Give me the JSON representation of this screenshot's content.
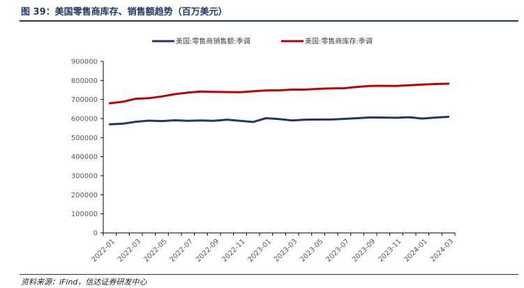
{
  "header": {
    "title": "图 39：美国零售商库存、销售额趋势（百万美元）"
  },
  "footer": {
    "source": "资料来源：iFind，信达证券研发中心"
  },
  "colors": {
    "sales": "#1f3864",
    "inventory": "#c00000",
    "axis": "#000000"
  },
  "chart_data": {
    "type": "line",
    "title": "",
    "xlabel": "",
    "ylabel": "",
    "ylim": [
      0,
      900000
    ],
    "yticks": [
      "0",
      "100000",
      "200000",
      "300000",
      "400000",
      "500000",
      "600000",
      "700000",
      "800000",
      "900000"
    ],
    "x": [
      "2022-01",
      "2022-02",
      "2022-03",
      "2022-04",
      "2022-05",
      "2022-06",
      "2022-07",
      "2022-08",
      "2022-09",
      "2022-10",
      "2022-11",
      "2022-12",
      "2023-01",
      "2023-02",
      "2023-03",
      "2023-04",
      "2023-05",
      "2023-06",
      "2023-07",
      "2023-08",
      "2023-09",
      "2023-10",
      "2023-11",
      "2023-12",
      "2024-01",
      "2024-02",
      "2024-03"
    ],
    "xtick_labels": [
      "2022-01",
      "2022-03",
      "2022-05",
      "2022-07",
      "2022-09",
      "2022-11",
      "2023-01",
      "2023-03",
      "2023-05",
      "2023-07",
      "2023-09",
      "2023-11",
      "2024-01",
      "2024-03"
    ],
    "grid": false,
    "legend_position": "top",
    "series": [
      {
        "name": "美国:零售商销售额:季调",
        "color": "#1f3864",
        "values": [
          570000,
          573000,
          583000,
          589000,
          587000,
          591000,
          588000,
          590000,
          588000,
          594000,
          588000,
          582000,
          602000,
          597000,
          590000,
          594000,
          595000,
          595000,
          598000,
          602000,
          606000,
          605000,
          604000,
          607000,
          600000,
          605000,
          609000
        ]
      },
      {
        "name": "美国:零售商库存:季调",
        "color": "#c00000",
        "values": [
          680000,
          688000,
          704000,
          707000,
          716000,
          728000,
          736000,
          742000,
          740000,
          739000,
          738000,
          743000,
          747000,
          748000,
          752000,
          752000,
          756000,
          758000,
          759000,
          766000,
          771000,
          772000,
          771000,
          775000,
          778000,
          781000,
          783000
        ]
      }
    ]
  }
}
